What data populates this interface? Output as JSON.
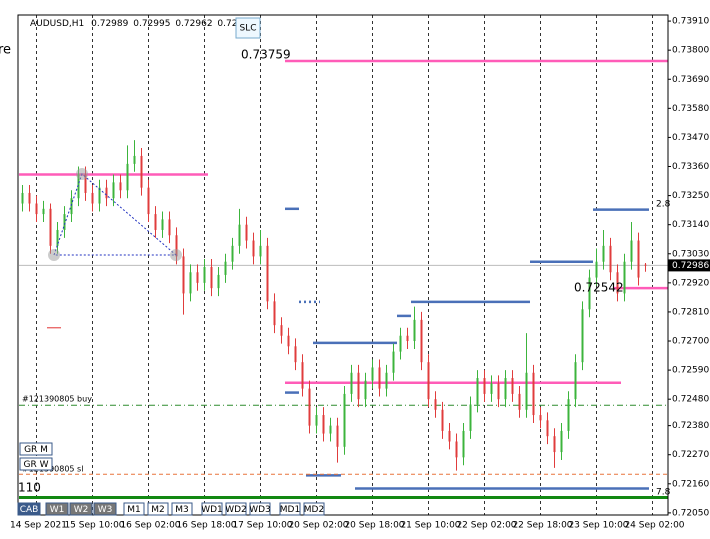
{
  "chart_data": {
    "type": "candlestick",
    "symbol": "AUDUSD,H1",
    "side_text": "re",
    "slc": "SLC",
    "categories": [
      null,
      null,
      "14 Sep 2021",
      null,
      null,
      null,
      null,
      null,
      null,
      null,
      "15 Sep 10:00",
      null,
      null,
      null,
      null,
      null,
      null,
      null,
      "16 Sep 02:00",
      null,
      null,
      null,
      null,
      null,
      null,
      null,
      "16 Sep 18:00",
      null,
      null,
      null,
      null,
      null,
      null,
      null,
      "17 Sep 10:00",
      null,
      null,
      null,
      null,
      null,
      null,
      null,
      "20 Sep 02:00",
      null,
      null,
      null,
      null,
      null,
      null,
      null,
      "20 Sep 18:00",
      null,
      null,
      null,
      null,
      null,
      null,
      null,
      "21 Sep 10:00",
      null,
      null,
      null,
      null,
      null,
      null,
      null,
      "22 Sep 02:00",
      null,
      null,
      null,
      null,
      null,
      null,
      null,
      "22 Sep 18:00",
      null,
      null,
      null,
      null,
      null,
      null,
      null,
      "23 Sep 10:00",
      null,
      null,
      null,
      null,
      null,
      null,
      null,
      "24 Sep 02:00"
    ],
    "ohlc": [
      [
        0.7322,
        0.7329,
        0.7319,
        0.7326
      ],
      [
        0.7326,
        0.7329,
        0.7319,
        0.7322
      ],
      [
        0.7322,
        0.7325,
        0.7315,
        0.7318
      ],
      [
        0.7318,
        0.7323,
        0.7315,
        0.732
      ],
      [
        0.732,
        0.7322,
        0.7303,
        0.7306
      ],
      [
        0.7306,
        0.7315,
        0.7303,
        0.7312
      ],
      [
        0.7312,
        0.7321,
        0.7309,
        0.7318
      ],
      [
        0.7318,
        0.7327,
        0.7315,
        0.7324
      ],
      [
        0.7324,
        0.7336,
        0.7321,
        0.7333
      ],
      [
        0.7333,
        0.7336,
        0.7323,
        0.7326
      ],
      [
        0.7326,
        0.7329,
        0.7319,
        0.7322
      ],
      [
        0.7322,
        0.7331,
        0.7319,
        0.7328
      ],
      [
        0.7328,
        0.7331,
        0.7321,
        0.7324
      ],
      [
        0.7324,
        0.7333,
        0.7321,
        0.733
      ],
      [
        0.733,
        0.7333,
        0.7324,
        0.7327
      ],
      [
        0.7327,
        0.7344,
        0.7324,
        0.7337
      ],
      [
        0.7337,
        0.7346,
        0.7334,
        0.734
      ],
      [
        0.734,
        0.7343,
        0.7325,
        0.7328
      ],
      [
        0.7328,
        0.7331,
        0.7315,
        0.7318
      ],
      [
        0.7318,
        0.7321,
        0.7309,
        0.7312
      ],
      [
        0.7312,
        0.7319,
        0.7309,
        0.7316
      ],
      [
        0.7316,
        0.7319,
        0.7307,
        0.731
      ],
      [
        0.731,
        0.7313,
        0.7299,
        0.7302
      ],
      [
        0.7302,
        0.7305,
        0.728,
        0.7288
      ],
      [
        0.7288,
        0.7299,
        0.7285,
        0.7296
      ],
      [
        0.7296,
        0.7299,
        0.7289,
        0.7292
      ],
      [
        0.7292,
        0.7301,
        0.7289,
        0.7298
      ],
      [
        0.7298,
        0.7301,
        0.7287,
        0.729
      ],
      [
        0.729,
        0.7298,
        0.7287,
        0.7295
      ],
      [
        0.7295,
        0.7303,
        0.7292,
        0.73
      ],
      [
        0.73,
        0.7309,
        0.7297,
        0.7306
      ],
      [
        0.7306,
        0.732,
        0.7303,
        0.7314
      ],
      [
        0.7314,
        0.7317,
        0.7305,
        0.7308
      ],
      [
        0.7308,
        0.7311,
        0.7299,
        0.7302
      ],
      [
        0.7302,
        0.7312,
        0.7299,
        0.7306
      ],
      [
        0.7306,
        0.7309,
        0.7282,
        0.7285
      ],
      [
        0.7285,
        0.7288,
        0.7273,
        0.7276
      ],
      [
        0.7276,
        0.7279,
        0.7269,
        0.7272
      ],
      [
        0.7272,
        0.7275,
        0.7265,
        0.7268
      ],
      [
        0.7268,
        0.7271,
        0.7259,
        0.7262
      ],
      [
        0.7262,
        0.7265,
        0.7249,
        0.7252
      ],
      [
        0.7252,
        0.7255,
        0.7235,
        0.7238
      ],
      [
        0.7238,
        0.7245,
        0.7235,
        0.7242
      ],
      [
        0.7242,
        0.7245,
        0.7232,
        0.7235
      ],
      [
        0.7235,
        0.7241,
        0.7232,
        0.7238
      ],
      [
        0.7238,
        0.7241,
        0.7224,
        0.723
      ],
      [
        0.723,
        0.7253,
        0.7227,
        0.725
      ],
      [
        0.725,
        0.7261,
        0.7247,
        0.7258
      ],
      [
        0.7258,
        0.7261,
        0.7245,
        0.7248
      ],
      [
        0.7248,
        0.7258,
        0.7245,
        0.7255
      ],
      [
        0.7255,
        0.7263,
        0.7252,
        0.726
      ],
      [
        0.726,
        0.7263,
        0.7249,
        0.7252
      ],
      [
        0.7252,
        0.7261,
        0.7249,
        0.7258
      ],
      [
        0.7258,
        0.7269,
        0.7255,
        0.7266
      ],
      [
        0.7266,
        0.7275,
        0.7263,
        0.7272
      ],
      [
        0.7272,
        0.7275,
        0.7267,
        0.727
      ],
      [
        0.727,
        0.7283,
        0.7267,
        0.7278
      ],
      [
        0.7278,
        0.7281,
        0.7259,
        0.7262
      ],
      [
        0.7262,
        0.7265,
        0.7245,
        0.7248
      ],
      [
        0.7248,
        0.7251,
        0.7241,
        0.7244
      ],
      [
        0.7244,
        0.7247,
        0.7233,
        0.7236
      ],
      [
        0.7236,
        0.7239,
        0.7229,
        0.7232
      ],
      [
        0.7232,
        0.7235,
        0.7221,
        0.7226
      ],
      [
        0.7226,
        0.7239,
        0.7223,
        0.7236
      ],
      [
        0.7236,
        0.7249,
        0.7233,
        0.7246
      ],
      [
        0.7246,
        0.7259,
        0.7243,
        0.7256
      ],
      [
        0.7256,
        0.7259,
        0.7247,
        0.725
      ],
      [
        0.725,
        0.7257,
        0.7247,
        0.7254
      ],
      [
        0.7254,
        0.7257,
        0.7245,
        0.7248
      ],
      [
        0.7248,
        0.7259,
        0.7245,
        0.7256
      ],
      [
        0.7256,
        0.7259,
        0.7247,
        0.725
      ],
      [
        0.725,
        0.7253,
        0.7241,
        0.7244
      ],
      [
        0.7244,
        0.7273,
        0.7241,
        0.7258
      ],
      [
        0.7258,
        0.7261,
        0.7239,
        0.7242
      ],
      [
        0.7242,
        0.7245,
        0.7237,
        0.724
      ],
      [
        0.724,
        0.7243,
        0.7231,
        0.7234
      ],
      [
        0.7234,
        0.7237,
        0.7222,
        0.7228
      ],
      [
        0.7228,
        0.7239,
        0.7225,
        0.7236
      ],
      [
        0.7236,
        0.7251,
        0.7233,
        0.7248
      ],
      [
        0.7248,
        0.7265,
        0.7245,
        0.7262
      ],
      [
        0.7262,
        0.7285,
        0.7259,
        0.7282
      ],
      [
        0.7282,
        0.7297,
        0.7279,
        0.7294
      ],
      [
        0.7294,
        0.7305,
        0.7291,
        0.73
      ],
      [
        0.73,
        0.7312,
        0.7297,
        0.7306
      ],
      [
        0.7306,
        0.7309,
        0.7293,
        0.7296
      ],
      [
        0.7296,
        0.7299,
        0.7285,
        0.7288
      ],
      [
        0.7288,
        0.7303,
        0.7285,
        0.73
      ],
      [
        0.73,
        0.7315,
        0.7297,
        0.7308
      ],
      [
        0.7308,
        0.7311,
        0.7291,
        0.7294
      ],
      [
        0.72989,
        0.72995,
        0.72962,
        0.72986
      ],
      null
    ],
    "up_color": "#3cb43c",
    "down_color": "#e03c3c",
    "ylim": [
      0.72042,
      0.73933
    ],
    "yticks": [
      {
        "value": 0.7391,
        "label": "0.73910"
      },
      {
        "value": 0.738,
        "label": "0.73800"
      },
      {
        "value": 0.7369,
        "label": "0.73690"
      },
      {
        "value": 0.7358,
        "label": "0.73580"
      },
      {
        "value": 0.7347,
        "label": "0.73470"
      },
      {
        "value": 0.7336,
        "label": "0.73360"
      },
      {
        "value": 0.7325,
        "label": "0.73250"
      },
      {
        "value": 0.7314,
        "label": "0.73140"
      },
      {
        "value": 0.7303,
        "label": "0.73030"
      },
      {
        "value": 0.7292,
        "label": "0.72920"
      },
      {
        "value": 0.7281,
        "label": "0.72810"
      },
      {
        "value": 0.727,
        "label": "0.72700"
      },
      {
        "value": 0.7259,
        "label": "0.72590"
      },
      {
        "value": 0.7248,
        "label": "0.72480"
      },
      {
        "value": 0.7238,
        "label": "0.72380"
      },
      {
        "value": 0.7227,
        "label": "0.72270"
      },
      {
        "value": 0.7216,
        "label": "0.72160"
      },
      {
        "value": 0.7205,
        "label": "0.72050"
      }
    ],
    "levels": [
      {
        "price": 0.73759,
        "color": "#ff5cb8",
        "start": 38,
        "end": 92,
        "style": "solid"
      },
      {
        "price": 0.7333,
        "color": "#ff5cb8",
        "start": 0,
        "end": 26,
        "style": "solid"
      },
      {
        "price": 0.72542,
        "color": "#ff5cb8",
        "start": 38,
        "end": 85,
        "style": "solid"
      },
      {
        "price": 0.729,
        "color": "#ff5cb8",
        "start": 85,
        "end": 92,
        "style": "solid"
      },
      {
        "price": 0.732,
        "color": "#4a70b8",
        "start": 38,
        "end": 39,
        "style": "solid"
      },
      {
        "price": 0.72848,
        "color": "#4a70b8",
        "start": 40,
        "end": 42,
        "style": "dotted"
      },
      {
        "price": 0.72693,
        "color": "#4a70b8",
        "start": 42,
        "end": 53,
        "style": "solid"
      },
      {
        "price": 0.72795,
        "color": "#4a70b8",
        "start": 54,
        "end": 55,
        "style": "solid"
      },
      {
        "price": 0.72848,
        "color": "#4a70b8",
        "start": 56,
        "end": 72,
        "style": "solid"
      },
      {
        "price": 0.73,
        "color": "#4a70b8",
        "start": 73,
        "end": 81,
        "style": "solid"
      },
      {
        "price": 0.73197,
        "color": "#4a70b8",
        "start": 82,
        "end": 89,
        "style": "solid"
      },
      {
        "price": 0.72505,
        "color": "#4a70b8",
        "start": 38,
        "end": 39,
        "style": "solid"
      },
      {
        "price": 0.72192,
        "color": "#4a70b8",
        "start": 41,
        "end": 45,
        "style": "solid"
      },
      {
        "price": 0.72142,
        "color": "#4a70b8",
        "start": 48,
        "end": 89,
        "style": "solid"
      },
      {
        "price": 0.7275,
        "color": "#e03030",
        "start": 4,
        "end": 5,
        "style": "solid"
      },
      {
        "price": 0.72457,
        "color": "#2e8b2e",
        "start": 0,
        "end": 92,
        "style": "dashdot"
      },
      {
        "price": 0.72196,
        "color": "#e8743b",
        "start": 0,
        "end": 92,
        "style": "dashed"
      },
      {
        "price": 0.72108,
        "color": "#118811",
        "start": 0,
        "end": 92,
        "style": "thick"
      },
      {
        "price": 0.72986,
        "color": "#bbbbbb",
        "start": 0,
        "end": 92,
        "style": "solid"
      }
    ],
    "annotations": {
      "level_top": "0.73759",
      "level_mid": "0.72542",
      "ratio_top": "2.8",
      "ratio_bottom": "7.8",
      "buy": "#121390805 buy",
      "sl": "#121390805 sl",
      "count": "110"
    },
    "buttons": [
      "GR M",
      "GR W",
      "CAB",
      "W1",
      "W2",
      "W3",
      "M1",
      "M2",
      "M3",
      "WD1",
      "WD2",
      "WD3",
      "MD1",
      "MD2"
    ]
  }
}
